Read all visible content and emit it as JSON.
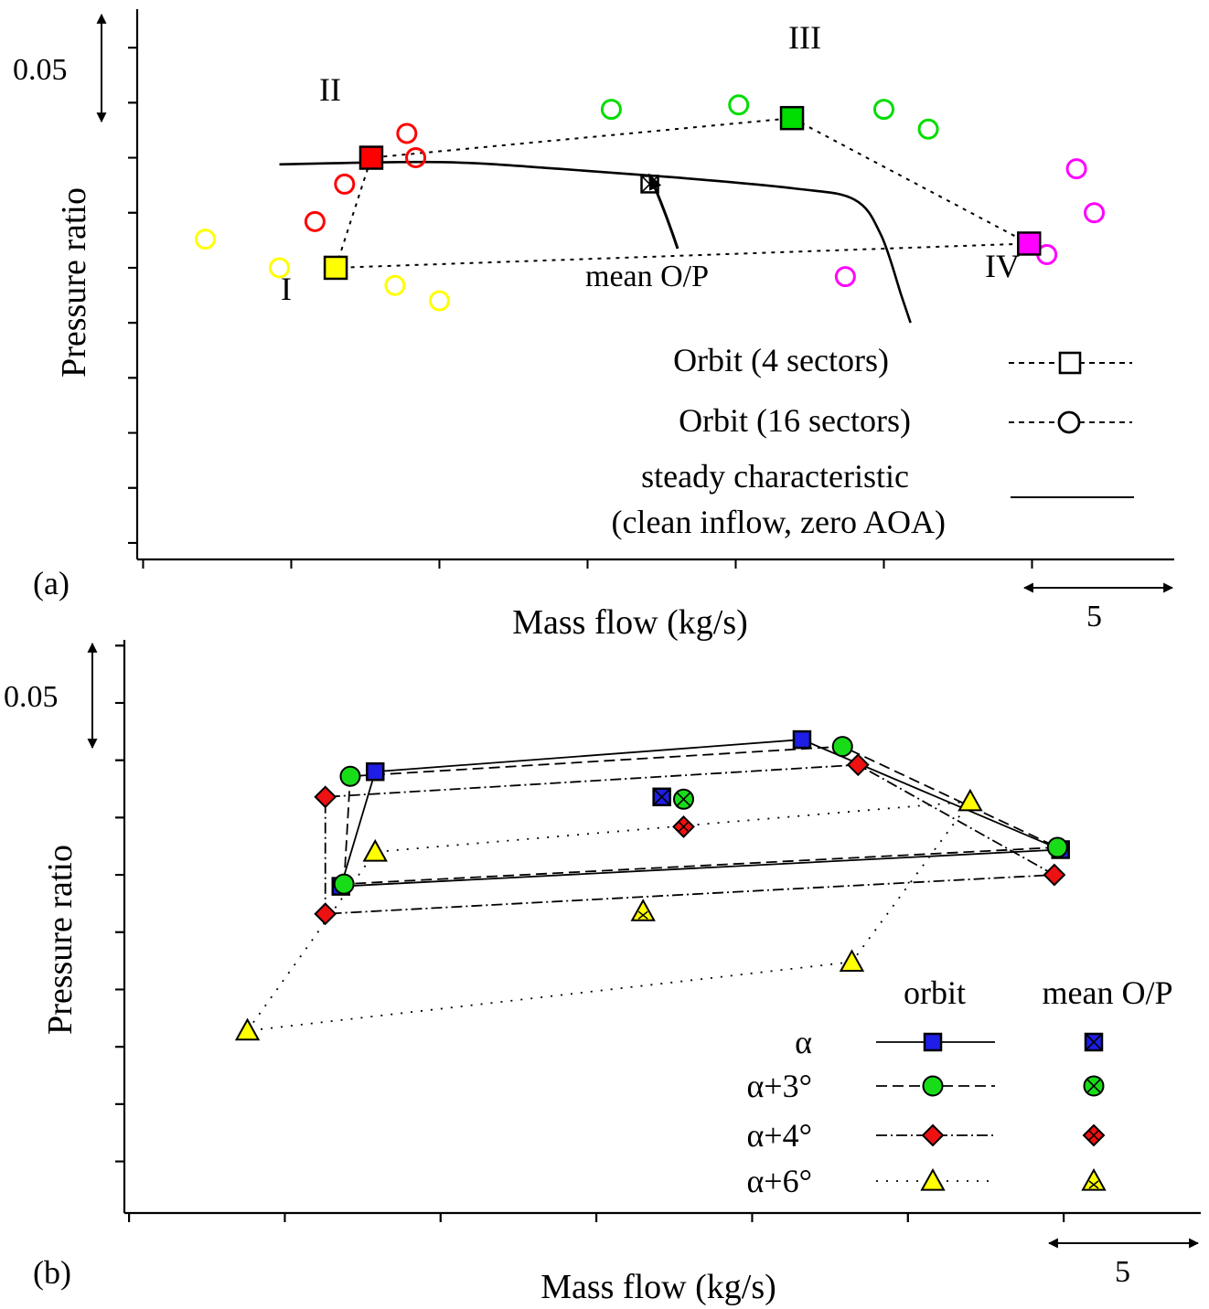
{
  "chart_data": [
    {
      "panel": "(a)",
      "type": "scatter",
      "xlabel": "Mass flow (kg/s)",
      "ylabel": "Pressure ratio",
      "x_scale_label": "5",
      "y_scale_label": "0.05",
      "x_scale_value": 5,
      "y_scale_value": 0.05,
      "xlim": [
        -0.2,
        34.8
      ],
      "ylim": [
        -0.1325,
        0.1175
      ],
      "orbit_labels": [
        "I",
        "II",
        "III",
        "IV"
      ],
      "mean_label": "mean O/P",
      "orbit_4_sectors": {
        "points": [
          [
            6.5,
            0.0
          ],
          [
            7.7,
            0.05
          ],
          [
            21.9,
            0.068
          ],
          [
            29.9,
            0.011
          ]
        ],
        "colors": [
          "#ffff00",
          "#ff0000",
          "#00dd00",
          "#ff00ff"
        ]
      },
      "orbit_16_sectors": [
        {
          "color": "#ffff00",
          "points": [
            [
              2.1,
              0.013
            ],
            [
              4.6,
              0.0
            ],
            [
              8.5,
              -0.008
            ],
            [
              10.0,
              -0.015
            ]
          ]
        },
        {
          "color": "#ff0000",
          "points": [
            [
              5.8,
              0.021
            ],
            [
              6.8,
              0.038
            ],
            [
              8.9,
              0.061
            ],
            [
              9.2,
              0.05
            ]
          ]
        },
        {
          "color": "#00dd00",
          "points": [
            [
              15.8,
              0.072
            ],
            [
              20.1,
              0.074
            ],
            [
              25.0,
              0.072
            ],
            [
              26.5,
              0.063
            ]
          ]
        },
        {
          "color": "#ff00ff",
          "points": [
            [
              23.7,
              -0.004
            ],
            [
              30.5,
              0.006
            ],
            [
              31.5,
              0.045
            ],
            [
              32.1,
              0.025
            ]
          ]
        }
      ],
      "mean_op": [
        17.1,
        0.038
      ],
      "steady_characteristic": [
        [
          4.6,
          0.047
        ],
        [
          10.0,
          0.048
        ],
        [
          14.0,
          0.045
        ],
        [
          18.0,
          0.041
        ],
        [
          22.0,
          0.036
        ],
        [
          24.0,
          0.031
        ],
        [
          24.9,
          0.015
        ],
        [
          25.6,
          -0.013
        ],
        [
          25.9,
          -0.025
        ]
      ],
      "legend": [
        {
          "label": "Orbit (4 sectors)",
          "line": "dotted",
          "marker": "square"
        },
        {
          "label": "Orbit (16 sectors)",
          "line": "dotted",
          "marker": "circle"
        },
        {
          "label": "steady characteristic",
          "label2": "(clean inflow, zero AOA)",
          "line": "solid",
          "marker": "none"
        }
      ],
      "legend_position": "lower-right",
      "grid": false
    },
    {
      "panel": "(b)",
      "type": "line",
      "xlabel": "Mass flow (kg/s)",
      "ylabel": "Pressure ratio",
      "x_scale_label": "5",
      "y_scale_label": "0.05",
      "x_scale_value": 5,
      "y_scale_value": 0.05,
      "xlim": [
        -0.15,
        34.4
      ],
      "ylim": [
        -0.1475,
        0.1025
      ],
      "legend_header_orbit": "orbit",
      "legend_header_mean": "mean O/P",
      "legend_position": "lower-right",
      "grid": false,
      "series": [
        {
          "name": "α",
          "color": "#1e1ee6",
          "marker": "square",
          "line": "solid",
          "orbit": [
            [
              6.8,
              -0.005
            ],
            [
              7.9,
              0.045
            ],
            [
              21.6,
              0.059
            ],
            [
              29.9,
              0.011
            ]
          ],
          "mean": [
            17.1,
            0.034
          ]
        },
        {
          "name": "α+3°",
          "color": "#19dc19",
          "marker": "circle",
          "line": "dashed",
          "orbit": [
            [
              6.9,
              -0.004
            ],
            [
              7.1,
              0.043
            ],
            [
              22.9,
              0.056
            ],
            [
              29.8,
              0.012
            ]
          ],
          "mean": [
            17.8,
            0.033
          ]
        },
        {
          "name": "α+4°",
          "color": "#ee1111",
          "marker": "diamond",
          "line": "dashdot",
          "orbit": [
            [
              6.3,
              -0.017
            ],
            [
              6.3,
              0.034
            ],
            [
              23.4,
              0.048
            ],
            [
              29.7,
              0.0
            ]
          ],
          "mean": [
            17.8,
            0.021
          ]
        },
        {
          "name": "α+6°",
          "color": "#ffff00",
          "marker": "triangle",
          "line": "dotted",
          "orbit": [
            [
              3.8,
              -0.068
            ],
            [
              7.9,
              0.01
            ],
            [
              27.0,
              0.032
            ],
            [
              23.2,
              -0.038
            ]
          ],
          "mean": [
            16.5,
            -0.016
          ]
        }
      ]
    }
  ]
}
